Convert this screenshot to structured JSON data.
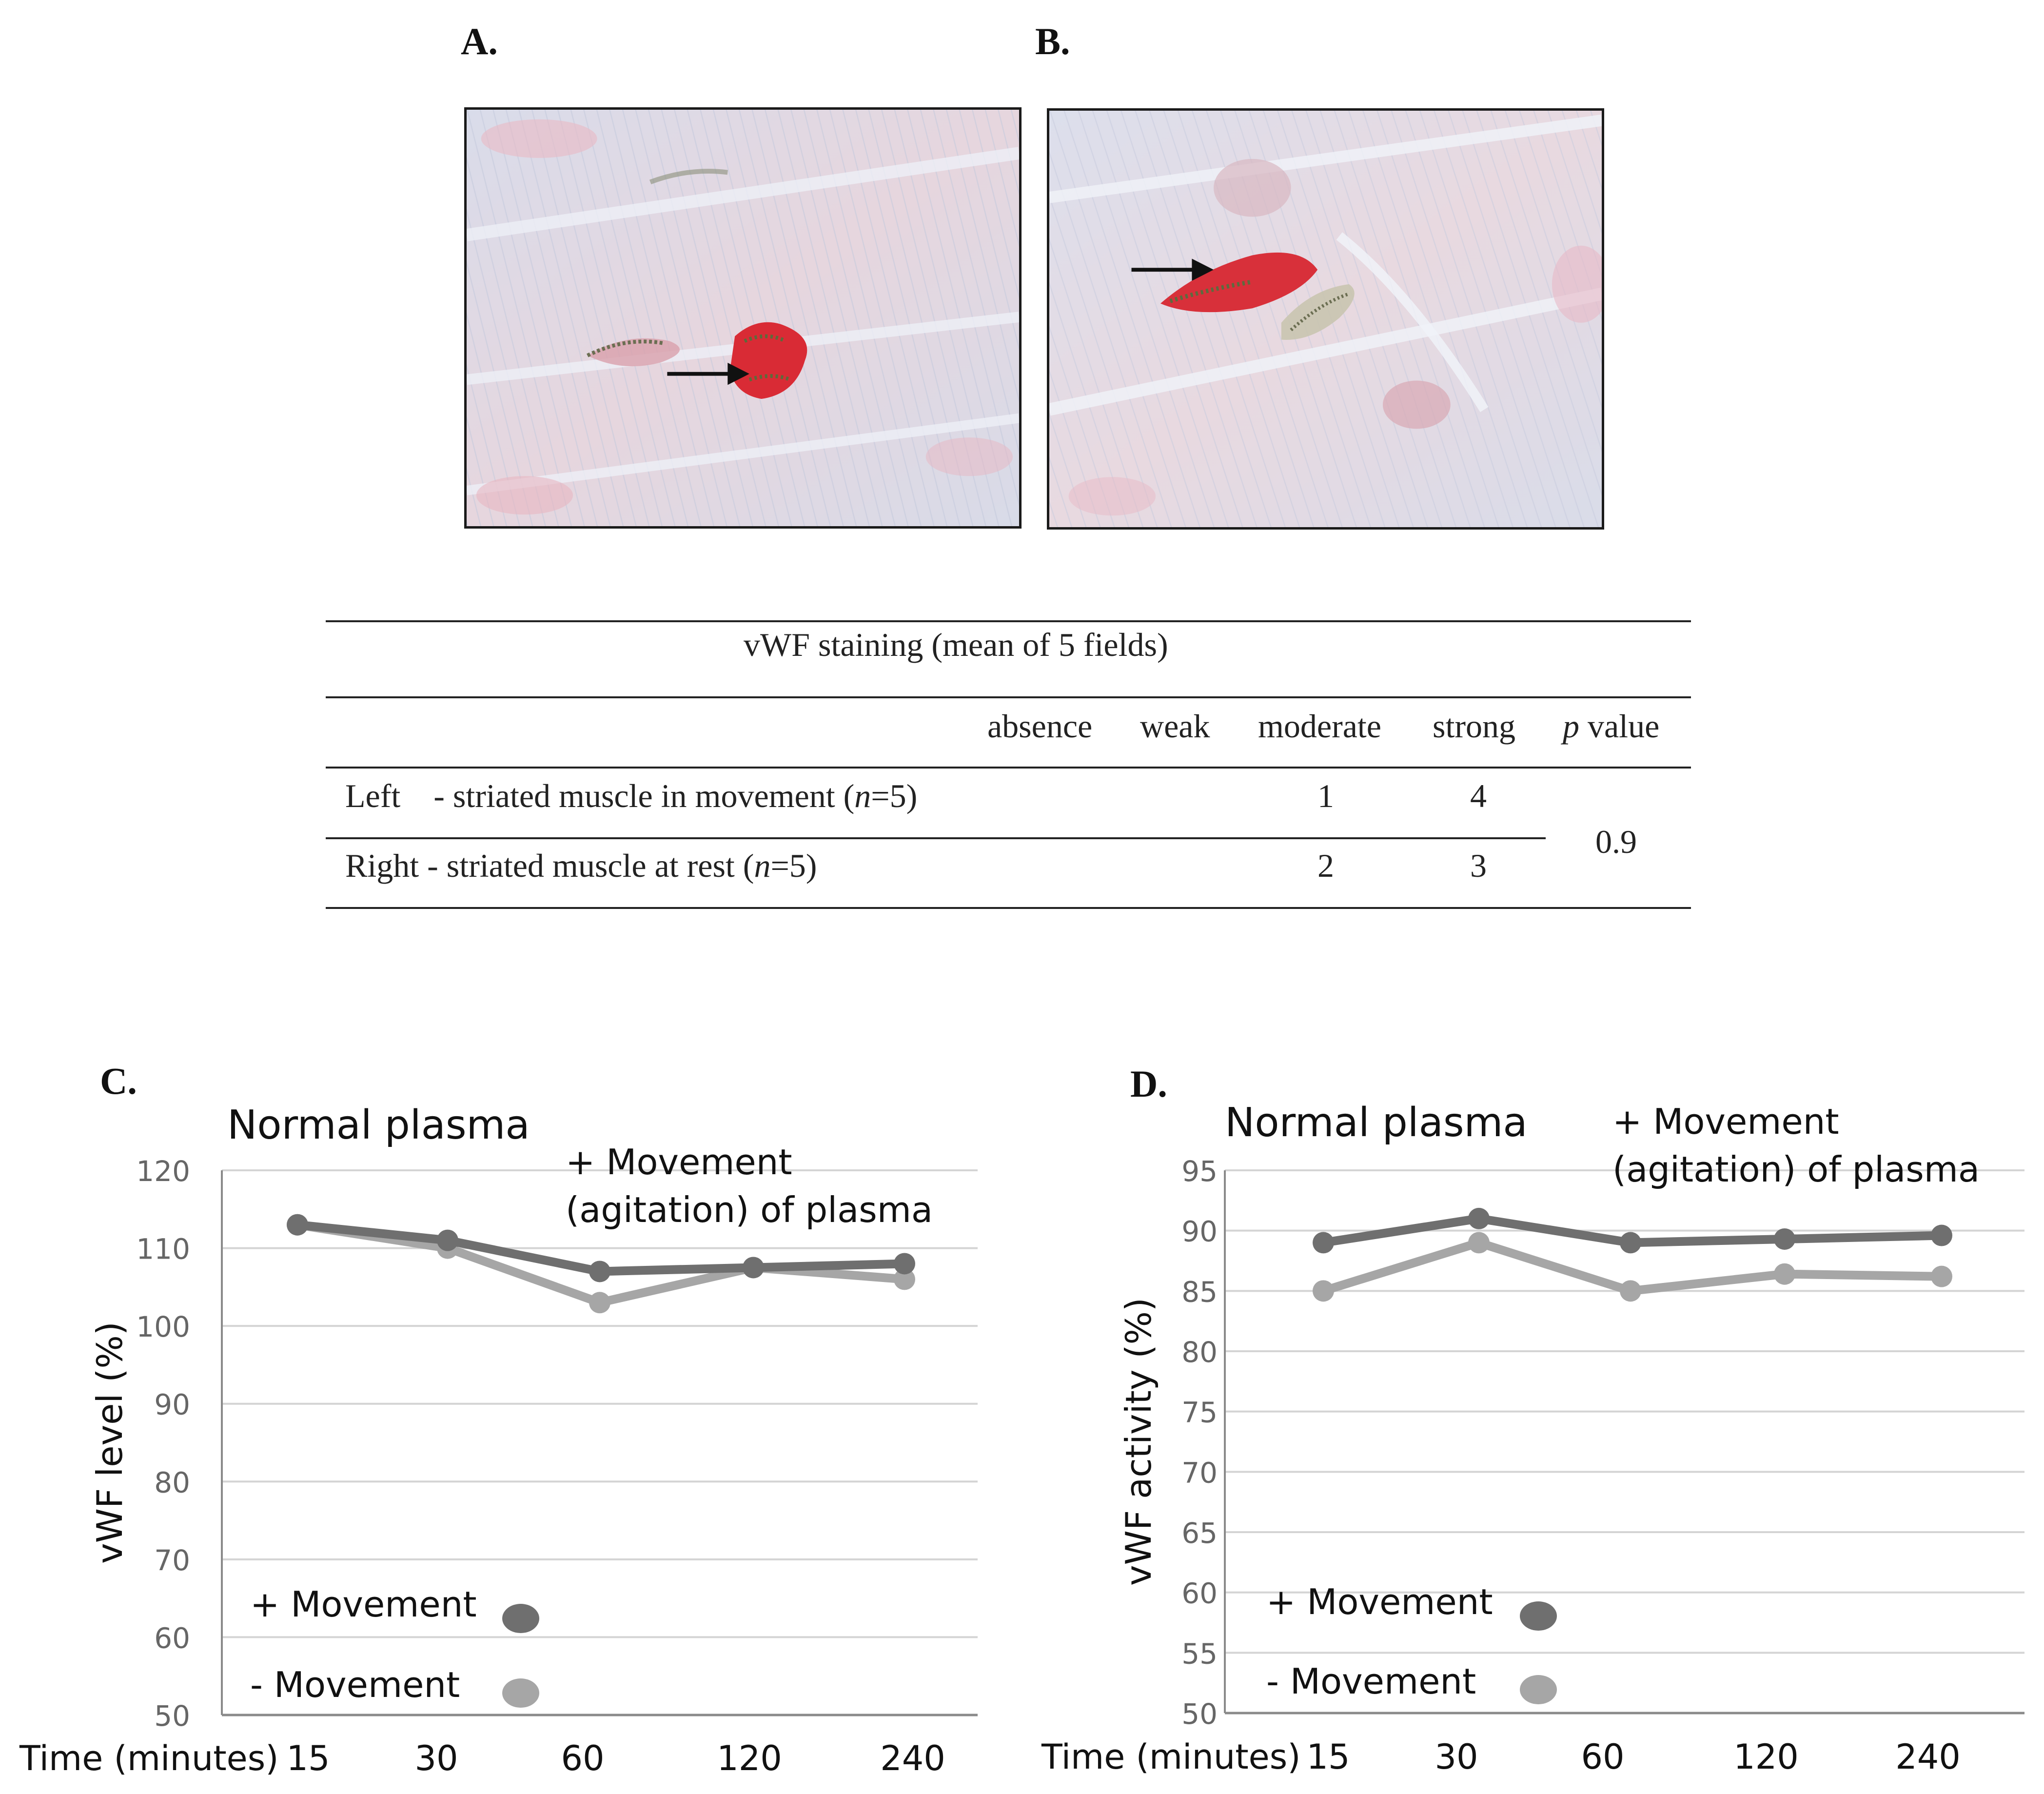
{
  "panels": {
    "a_label": "A.",
    "b_label": "B.",
    "c_label": "C.",
    "d_label": "D."
  },
  "images": {
    "a": "micrograph-striated-muscle-in-movement",
    "b": "micrograph-striated-muscle-at-rest",
    "arrow_icon": "arrow-right-icon"
  },
  "table": {
    "title": "vWF staining    (mean of 5 fields)",
    "columns": [
      "absence",
      "weak",
      "moderate",
      "strong",
      "p value"
    ],
    "pvalue_italic": "p",
    "pvalue_rest": " value",
    "rows": [
      {
        "label_start": "Left    - striated muscle in movement (",
        "n": "n",
        "label_end": "=5)",
        "absence": "",
        "weak": "",
        "moderate": "1",
        "strong": "4"
      },
      {
        "label_start": "Right - striated muscle at rest (",
        "n": "n",
        "label_end": "=5)",
        "absence": "",
        "weak": "",
        "moderate": "2",
        "strong": "3"
      }
    ],
    "pvalue": "0.9"
  },
  "chart_data": [
    {
      "type": "line",
      "title": "Normal plasma",
      "annotation": [
        "+ Movement",
        "(agitation) of plasma"
      ],
      "xlabel": "Time (minutes)",
      "ylabel": "vWF level (%)",
      "categories": [
        "15",
        "30",
        "60",
        "120",
        "240"
      ],
      "ylim": [
        50,
        120
      ],
      "yticks": [
        50,
        60,
        70,
        80,
        90,
        100,
        110,
        120
      ],
      "grid": true,
      "legend_position": "bottom-left",
      "series": [
        {
          "name": "+ Movement",
          "color": "#6f6f6f",
          "values": [
            113,
            111,
            107,
            107.5,
            108
          ]
        },
        {
          "name": "- Movement",
          "color": "#a6a6a6",
          "values": [
            113,
            110,
            103,
            107.5,
            106
          ]
        }
      ]
    },
    {
      "type": "line",
      "title": "Normal plasma",
      "annotation": [
        "+ Movement",
        "(agitation) of plasma"
      ],
      "xlabel": "Time (minutes)",
      "ylabel": "vWF activity (%)",
      "categories": [
        "15",
        "30",
        "60",
        "120",
        "240"
      ],
      "ylim": [
        50,
        95
      ],
      "yticks": [
        50,
        55,
        60,
        65,
        70,
        75,
        80,
        85,
        90,
        95
      ],
      "grid": true,
      "legend_position": "bottom-left",
      "series": [
        {
          "name": "+ Movement",
          "color": "#6f6f6f",
          "values": [
            89,
            91,
            89,
            89.3,
            89.6
          ]
        },
        {
          "name": "- Movement",
          "color": "#a6a6a6",
          "values": [
            85,
            89,
            85,
            86.4,
            86.2
          ]
        }
      ]
    }
  ]
}
